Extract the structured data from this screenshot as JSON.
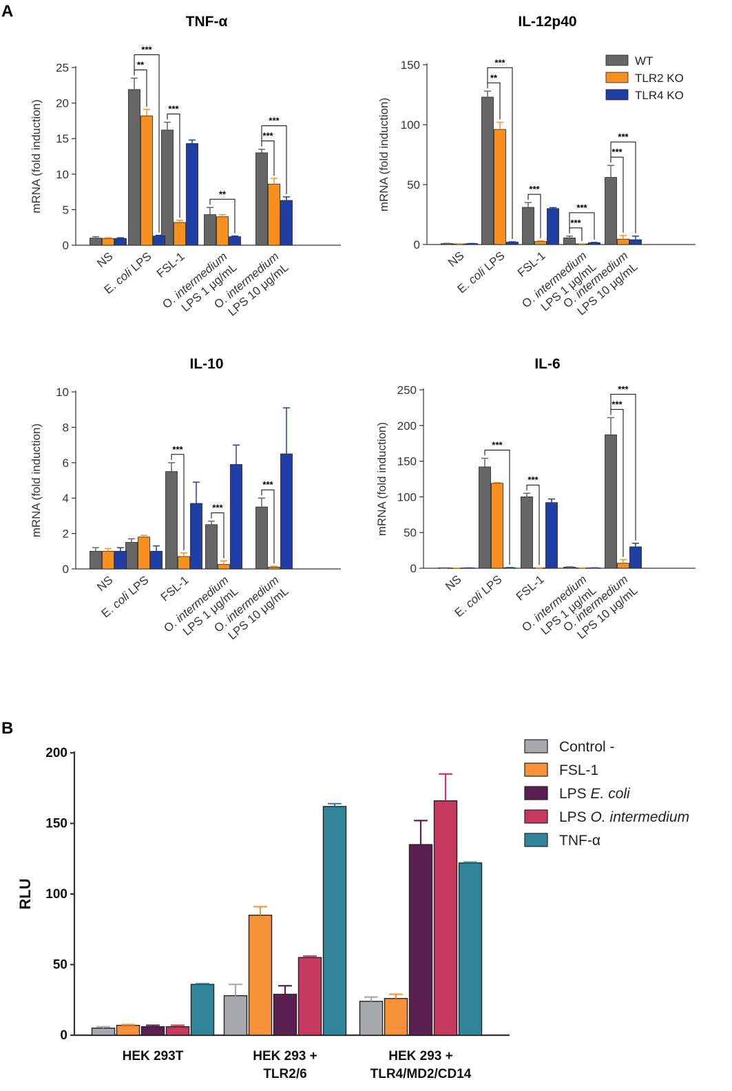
{
  "panel_labels": [
    "A",
    "B"
  ],
  "chart_data": [
    {
      "type": "bar",
      "title": "TNF-α",
      "ylabel": "mRNA (fold induction)",
      "ylim": [
        0,
        25
      ],
      "yticks": [
        0,
        5,
        10,
        15,
        20,
        25
      ],
      "categories": [
        {
          "parts": [
            [
              "NS",
              false
            ]
          ]
        },
        {
          "parts": [
            [
              "E. ",
              false
            ],
            [
              "coli",
              true
            ],
            [
              " LPS",
              false
            ]
          ]
        },
        {
          "parts": [
            [
              "FSL-1",
              false
            ]
          ]
        },
        {
          "parts": [
            [
              "O. ",
              false
            ],
            [
              "intermedium",
              true
            ]
          ],
          "line2": "LPS 1 μg/mL"
        },
        {
          "parts": [
            [
              "O. ",
              false
            ],
            [
              "intermedium",
              true
            ]
          ],
          "line2": "LPS 10 μg/mL"
        }
      ],
      "series": [
        {
          "name": "WT",
          "color": "#666666",
          "values": [
            1.0,
            21.9,
            16.2,
            4.3,
            13.0
          ],
          "errors": [
            0.2,
            1.6,
            1.1,
            1.0,
            0.5
          ]
        },
        {
          "name": "TLR2 KO",
          "color": "#f7901e",
          "values": [
            0.95,
            18.2,
            3.2,
            4.0,
            8.6
          ],
          "errors": [
            0.1,
            0.9,
            0.3,
            0.3,
            0.8
          ]
        },
        {
          "name": "TLR4 KO",
          "color": "#1f3fa6",
          "values": [
            0.95,
            1.3,
            14.3,
            1.2,
            6.3
          ],
          "errors": [
            0.1,
            0.1,
            0.5,
            0.1,
            0.5
          ]
        }
      ],
      "significance": [
        {
          "cat": 1,
          "to": 1,
          "label": "**"
        },
        {
          "cat": 1,
          "to": 2,
          "label": "***"
        },
        {
          "cat": 2,
          "to": 1,
          "label": "***"
        },
        {
          "cat": 3,
          "to": 2,
          "label": "**"
        },
        {
          "cat": 4,
          "to": 1,
          "label": "***"
        },
        {
          "cat": 4,
          "to": 2,
          "label": "***"
        }
      ]
    },
    {
      "type": "bar",
      "title": "IL-12p40",
      "ylabel": "mRNA (fold induction)",
      "ylim": [
        0,
        150
      ],
      "yticks": [
        0,
        50,
        100,
        150
      ],
      "categories": [
        {
          "parts": [
            [
              "NS",
              false
            ]
          ]
        },
        {
          "parts": [
            [
              "E. ",
              false
            ],
            [
              "coli",
              true
            ],
            [
              " LPS",
              false
            ]
          ]
        },
        {
          "parts": [
            [
              "FSL-1",
              false
            ]
          ]
        },
        {
          "parts": [
            [
              "O. ",
              false
            ],
            [
              "intermedium",
              true
            ]
          ],
          "line2": "LPS 1 μg/mL"
        },
        {
          "parts": [
            [
              "O. ",
              false
            ],
            [
              "intermedium",
              true
            ]
          ],
          "line2": "LPS 10 μg/mL"
        }
      ],
      "series": [
        {
          "name": "WT",
          "color": "#666666",
          "values": [
            0.8,
            123,
            31,
            5.5,
            56
          ],
          "errors": [
            0.2,
            5,
            4,
            1.5,
            10
          ]
        },
        {
          "name": "TLR2 KO",
          "color": "#f7901e",
          "values": [
            0.5,
            96,
            2.5,
            0.5,
            4.5
          ],
          "errors": [
            0.1,
            6,
            0.5,
            0.1,
            3
          ]
        },
        {
          "name": "TLR4 KO",
          "color": "#1f3fa6",
          "values": [
            0.8,
            2.0,
            30,
            1.5,
            4
          ],
          "errors": [
            0.1,
            0.3,
            0.8,
            0.3,
            3
          ]
        }
      ],
      "legend": {
        "position": "top-right",
        "entries": [
          "WT",
          "TLR2 KO",
          "TLR4 KO"
        ]
      },
      "significance": [
        {
          "cat": 1,
          "to": 1,
          "label": "**"
        },
        {
          "cat": 1,
          "to": 2,
          "label": "***"
        },
        {
          "cat": 2,
          "to": 1,
          "label": "***"
        },
        {
          "cat": 3,
          "to": 1,
          "label": "***"
        },
        {
          "cat": 3,
          "to": 2,
          "label": "***"
        },
        {
          "cat": 4,
          "to": 1,
          "label": "***"
        },
        {
          "cat": 4,
          "to": 2,
          "label": "***"
        }
      ]
    },
    {
      "type": "bar",
      "title": "IL-10",
      "ylabel": "mRNA (fold induction)",
      "ylim": [
        0,
        10
      ],
      "yticks": [
        0,
        2,
        4,
        6,
        8,
        10
      ],
      "categories": [
        {
          "parts": [
            [
              "NS",
              false
            ]
          ]
        },
        {
          "parts": [
            [
              "E. ",
              false
            ],
            [
              "coli",
              true
            ],
            [
              " LPS",
              false
            ]
          ]
        },
        {
          "parts": [
            [
              "FSL-1",
              false
            ]
          ]
        },
        {
          "parts": [
            [
              "O. ",
              false
            ],
            [
              "intermedium",
              true
            ]
          ],
          "line2": "LPS 1 μg/mL"
        },
        {
          "parts": [
            [
              "O. ",
              false
            ],
            [
              "intermedium",
              true
            ]
          ],
          "line2": "LPS 10 μg/mL"
        }
      ],
      "series": [
        {
          "name": "WT",
          "color": "#666666",
          "values": [
            1.0,
            1.5,
            5.5,
            2.5,
            3.5
          ],
          "errors": [
            0.2,
            0.2,
            0.5,
            0.2,
            0.5
          ]
        },
        {
          "name": "TLR2 KO",
          "color": "#f7901e",
          "values": [
            1.0,
            1.8,
            0.7,
            0.25,
            0.1
          ],
          "errors": [
            0.15,
            0.1,
            0.2,
            0.2,
            0.05
          ]
        },
        {
          "name": "TLR4 KO",
          "color": "#1f3fa6",
          "values": [
            1.0,
            1.0,
            3.7,
            5.9,
            6.5
          ],
          "errors": [
            0.2,
            0.3,
            1.2,
            1.1,
            2.6
          ]
        }
      ],
      "significance": [
        {
          "cat": 2,
          "to": 1,
          "label": "***"
        },
        {
          "cat": 3,
          "to": 1,
          "label": "***"
        },
        {
          "cat": 4,
          "to": 1,
          "label": "***"
        }
      ]
    },
    {
      "type": "bar",
      "title": "IL-6",
      "ylabel": "mRNA (fold induction)",
      "ylim": [
        0,
        250
      ],
      "yticks": [
        0,
        50,
        100,
        150,
        200,
        250
      ],
      "categories": [
        {
          "parts": [
            [
              "NS",
              false
            ]
          ]
        },
        {
          "parts": [
            [
              "E. ",
              false
            ],
            [
              "coli",
              true
            ],
            [
              " LPS",
              false
            ]
          ]
        },
        {
          "parts": [
            [
              "FSL-1",
              false
            ]
          ]
        },
        {
          "parts": [
            [
              "O. ",
              false
            ],
            [
              "intermedium",
              true
            ]
          ],
          "line2": "LPS 1 μg/mL"
        },
        {
          "parts": [
            [
              "O. ",
              false
            ],
            [
              "intermedium",
              true
            ]
          ],
          "line2": "LPS 10 μg/mL"
        }
      ],
      "series": [
        {
          "name": "WT",
          "color": "#666666",
          "values": [
            0.5,
            142,
            100,
            1.5,
            187
          ],
          "errors": [
            0.1,
            12,
            5,
            0.5,
            24
          ]
        },
        {
          "name": "TLR2 KO",
          "color": "#f7901e",
          "values": [
            0.3,
            119,
            0.5,
            0.5,
            7
          ],
          "errors": [
            0.1,
            1,
            0.1,
            0.1,
            5
          ]
        },
        {
          "name": "TLR4 KO",
          "color": "#1f3fa6",
          "values": [
            0.4,
            0.8,
            92,
            0.5,
            30
          ],
          "errors": [
            0.1,
            0.2,
            5,
            0.1,
            5
          ]
        }
      ],
      "significance": [
        {
          "cat": 1,
          "to": 2,
          "label": "***"
        },
        {
          "cat": 2,
          "to": 1,
          "label": "***"
        },
        {
          "cat": 4,
          "to": 1,
          "label": "***"
        },
        {
          "cat": 4,
          "to": 2,
          "label": "***"
        }
      ]
    },
    {
      "type": "bar",
      "title": "",
      "ylabel": "RLU",
      "ylim": [
        0,
        200
      ],
      "yticks": [
        0,
        50,
        100,
        150,
        200
      ],
      "categories": [
        {
          "line1": "HEK 293T"
        },
        {
          "line1": "HEK 293 +",
          "line2": "TLR2/6"
        },
        {
          "line1": "HEK 293 +",
          "line2": "TLR4/MD2/CD14"
        }
      ],
      "series": [
        {
          "name": "Control -",
          "color": "#a7a9ac",
          "values": [
            5,
            28,
            24
          ],
          "errors": [
            1,
            8,
            3
          ]
        },
        {
          "name": "FSL-1",
          "color": "#f7923a",
          "values": [
            7,
            85,
            26
          ],
          "errors": [
            0.5,
            6,
            3
          ]
        },
        {
          "name": "LPS E. coli",
          "color": "#5b1f52",
          "values": [
            6,
            29,
            135
          ],
          "errors": [
            1,
            6,
            17
          ]
        },
        {
          "name": "LPS O. intermedium",
          "color": "#c8395f",
          "values": [
            6,
            55,
            166
          ],
          "errors": [
            1,
            1,
            19
          ]
        },
        {
          "name": "TNF-α",
          "color": "#31859b",
          "values": [
            36,
            162,
            122
          ],
          "errors": [
            0.5,
            2,
            0.5
          ]
        }
      ],
      "legend": {
        "position": "top-right",
        "entries": [
          {
            "parts": [
              [
                "Control -",
                false
              ]
            ]
          },
          {
            "parts": [
              [
                "FSL-1",
                false
              ]
            ]
          },
          {
            "parts": [
              [
                "LPS ",
                false
              ],
              [
                "E. coli",
                true
              ]
            ]
          },
          {
            "parts": [
              [
                "LPS ",
                false
              ],
              [
                "O. intermedium",
                true
              ]
            ]
          },
          {
            "parts": [
              [
                "TNF-α",
                false
              ]
            ]
          }
        ]
      }
    }
  ]
}
